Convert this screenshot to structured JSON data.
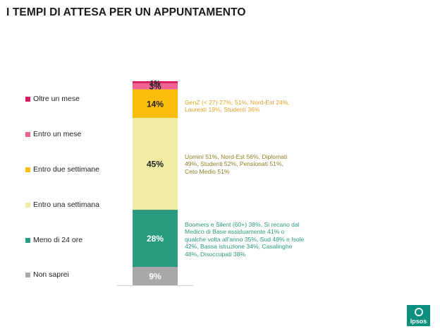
{
  "title": "I TEMPI DI ATTESA PER UN APPUNTAMENTO",
  "chart_data": {
    "type": "bar",
    "stacked": true,
    "orientation": "vertical",
    "ylim": [
      0,
      100
    ],
    "categories": [
      ""
    ],
    "series": [
      {
        "name": "Non saprei",
        "value": 9,
        "label": "9%",
        "color": "#a8a8a8",
        "text_color": "#ffffff"
      },
      {
        "name": "Meno di 24 ore",
        "value": 28,
        "label": "28%",
        "color": "#2a9a80",
        "text_color": "#ffffff"
      },
      {
        "name": "Entro una settimana",
        "value": 45,
        "label": "45%",
        "color": "#f0eca4",
        "text_color": "#222222"
      },
      {
        "name": "Entro due settimane",
        "value": 14,
        "label": "14%",
        "color": "#fbbd07",
        "text_color": "#222222"
      },
      {
        "name": "Entro un mese",
        "value": 3,
        "label": "3%",
        "color": "#f06292",
        "text_color": "#222222"
      },
      {
        "name": "Oltre un mese",
        "value": 1,
        "label": "1%",
        "color": "#d81b60",
        "text_color": "#222222"
      }
    ],
    "legend": [
      {
        "label": "Oltre un mese",
        "color": "#d81b60"
      },
      {
        "label": "Entro un mese",
        "color": "#f06292"
      },
      {
        "label": "Entro due settimane",
        "color": "#fbbd07"
      },
      {
        "label": "Entro una settimana",
        "color": "#f0eca4"
      },
      {
        "label": "Meno di 24 ore",
        "color": "#2a9a80"
      },
      {
        "label": "Non saprei",
        "color": "#a8a8a8"
      }
    ],
    "annotations": [
      {
        "segment": "Entro due settimane",
        "text": "GenZ (< 27) 27%,  51%, Nord-Est 24%,\nLaureati 19%,  Studenti 36%",
        "color": "#e2a32a"
      },
      {
        "segment": "Entro una settimana",
        "text": "Uomini 51%, Nord-Est 56%, Diplomati\n49%, Studenti 52%, Pensionati  51%,\nCeto Medio 51%",
        "color": "#8a8228"
      },
      {
        "segment": "Meno di 24 ore",
        "text": "Boomers e Silent (60+) 38%, Si recano dal\nMedico di Base assiduamente 41% o\nqualche volta all'anno 35%, Sud 48% e Isole\n42%, Bassa istruzione 34%, Casalinghe\n48%, Disoccupati 38%",
        "color": "#2a9a80"
      }
    ]
  },
  "logo": {
    "text": "Ipsos",
    "color": "#0b8f7e"
  }
}
